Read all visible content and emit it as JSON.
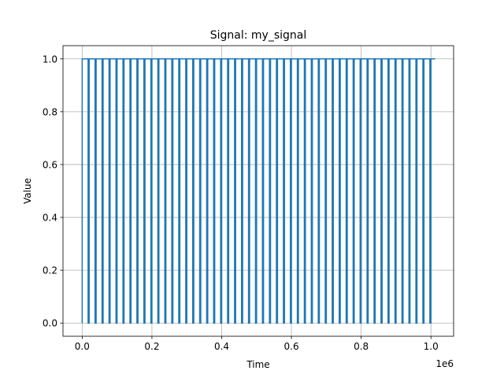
{
  "chart_data": {
    "type": "line",
    "title": "Signal: my_signal",
    "xlabel": "Time",
    "ylabel": "Value",
    "x_offset_label": "1e6",
    "xlim": [
      -55000,
      1065000
    ],
    "ylim": [
      -0.05,
      1.05
    ],
    "x_ticks": [
      0,
      200000,
      400000,
      600000,
      800000,
      1000000
    ],
    "x_tick_labels": [
      "0.0",
      "0.2",
      "0.4",
      "0.6",
      "0.8",
      "1.0"
    ],
    "y_ticks": [
      0.0,
      0.2,
      0.4,
      0.6,
      0.8,
      1.0
    ],
    "y_tick_labels": [
      "0.0",
      "0.2",
      "0.4",
      "0.6",
      "0.8",
      "1.0"
    ],
    "grid": true,
    "series": [
      {
        "color": "#1f77b4",
        "waveform": "square",
        "low": 0,
        "high": 1,
        "x_start": 0,
        "x_end": 1012000,
        "period": 20000,
        "high_duration": 17000
      }
    ]
  }
}
